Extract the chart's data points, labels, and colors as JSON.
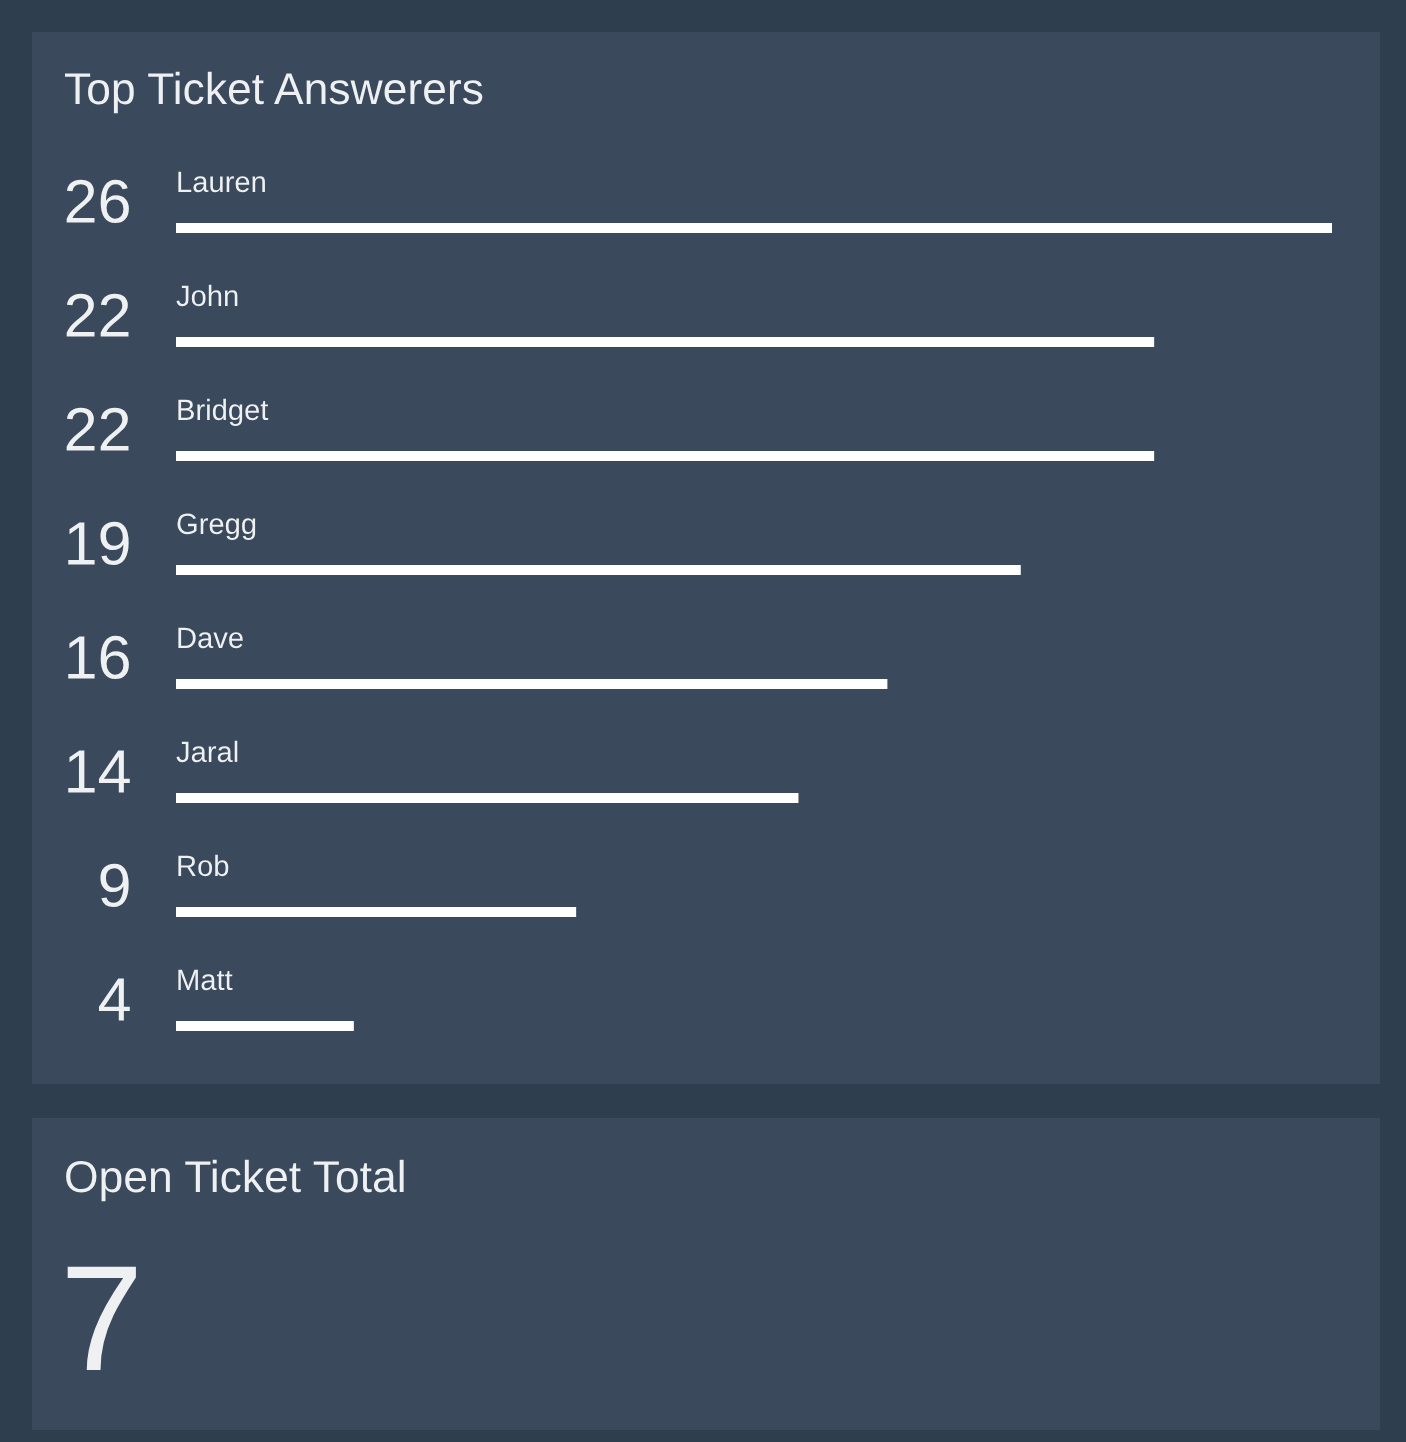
{
  "chart_data": [
    {
      "type": "bar",
      "orientation": "horizontal",
      "title": "Top Ticket Answerers",
      "categories": [
        "Lauren",
        "John",
        "Bridget",
        "Gregg",
        "Dave",
        "Jaral",
        "Rob",
        "Matt"
      ],
      "values": [
        26,
        22,
        22,
        19,
        16,
        14,
        9,
        4
      ],
      "color": "#ffffff",
      "data_labels": true
    },
    {
      "type": "other",
      "title": "Open Ticket Total",
      "annotations": [
        "7"
      ]
    }
  ]
}
